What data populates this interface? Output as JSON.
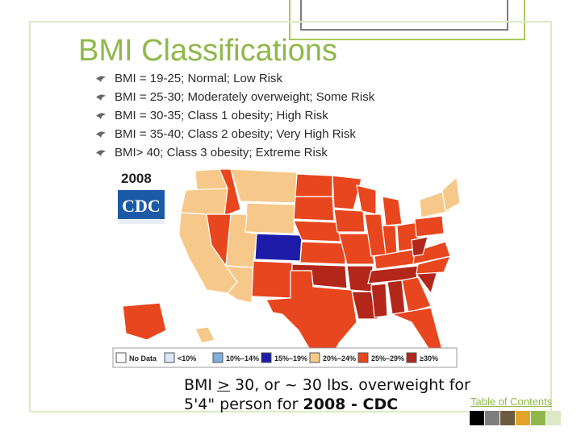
{
  "slide": {
    "title": "BMI Classifications",
    "bullets": [
      "BMI = 19-25; Normal; Low Risk",
      "BMI = 25-30; Moderately overweight; Some Risk",
      "BMI = 30-35; Class 1 obesity; High Risk",
      "BMI = 35-40; Class 2 obesity; Very High Risk",
      "BMI> 40; Class 3 obesity; Extreme Risk"
    ],
    "bullet_icon": "ornament-icon",
    "accent_color": "#8fb84a"
  },
  "map": {
    "year": "2008",
    "logo_text": "CDC",
    "legend": [
      {
        "label": "No Data",
        "color": "#ffffff"
      },
      {
        "label": "<10%",
        "color": "#d8e6f5"
      },
      {
        "label": "10%–14%",
        "color": "#7eaee0"
      },
      {
        "label": "15%–19%",
        "color": "#1c1ca8"
      },
      {
        "label": "20%–24%",
        "color": "#f6c98a"
      },
      {
        "label": "25%–29%",
        "color": "#e8461e"
      },
      {
        "label": "≥30%",
        "color": "#b3261a"
      }
    ]
  },
  "caption": {
    "part1": "BMI ",
    "underlined": ">",
    "part2": " 30, or ~ 30 lbs. overweight for",
    "line2_prefix": "5'4\" person for ",
    "line2_bold": "2008 - CDC"
  },
  "nav": {
    "toc_label": "Table of Contents",
    "swatch_colors": [
      "#000000",
      "#7f7f7f",
      "#6b5a3e",
      "#e3a32b",
      "#8fb84a",
      "#dde9c6"
    ]
  }
}
